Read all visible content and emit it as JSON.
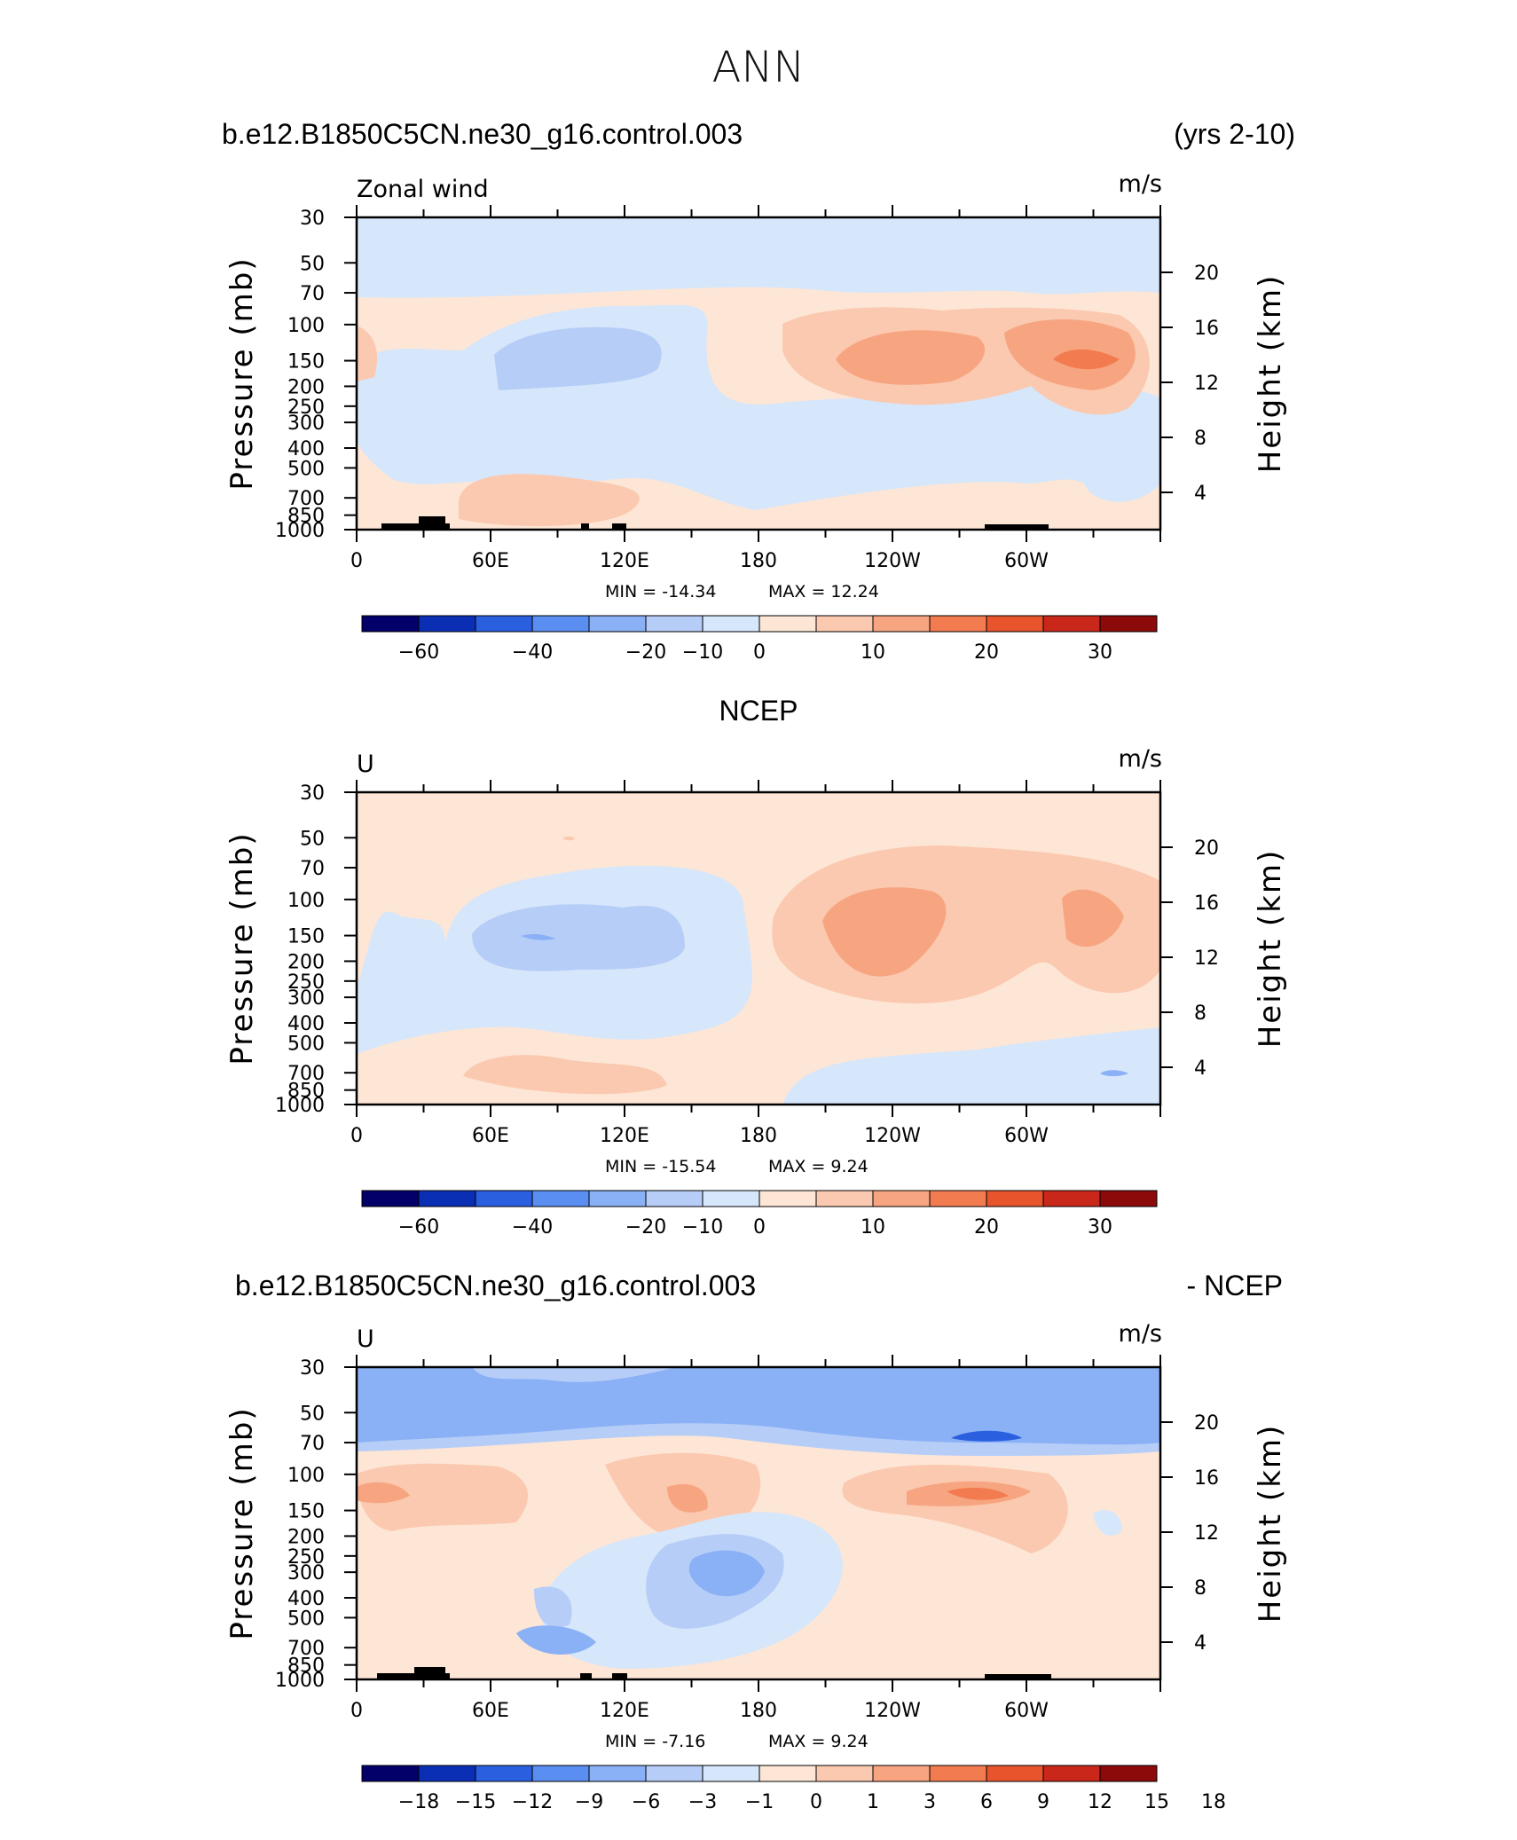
{
  "figure_title": "ANN",
  "chart_data": [
    {
      "type": "heatmap",
      "id": "model",
      "title_left": "b.e12.B1850C5CN.ne30_g16.control.003",
      "title_right": "(yrs 2-10)",
      "label_left": "Zonal wind",
      "label_right": "m/s",
      "ylabel": "Pressure (mb)",
      "ylabel_right": "Height (km)",
      "x_ticks": [
        "0",
        "60E",
        "120E",
        "180",
        "120W",
        "60W"
      ],
      "y_ticks": [
        "30",
        "50",
        "70",
        "100",
        "150",
        "200",
        "250",
        "300",
        "400",
        "500",
        "700",
        "850",
        "1000"
      ],
      "height_ticks": [
        "20",
        "16",
        "12",
        "8",
        "4"
      ],
      "ylim": [
        1000,
        30
      ],
      "xlim": [
        0,
        360
      ],
      "min_label": "MIN =  -14.34",
      "max_label": "MAX =   12.24",
      "colorbar_labels": [
        "-60",
        "-40",
        "-20",
        "-10",
        "0",
        "10",
        "20",
        "30"
      ],
      "colors": [
        "#03006a",
        "#0a2fb4",
        "#2a5fe0",
        "#5a8ef0",
        "#8ab0f5",
        "#b6cdf8",
        "#d6e6fb",
        "#fde6d6",
        "#fbc9b0",
        "#f7a581",
        "#f27c50",
        "#e8542c",
        "#c9271a",
        "#8c0a0a"
      ]
    },
    {
      "type": "heatmap",
      "id": "ncep",
      "title_center": "NCEP",
      "label_left": "U",
      "label_right": "m/s",
      "ylabel": "Pressure (mb)",
      "ylabel_right": "Height (km)",
      "x_ticks": [
        "0",
        "60E",
        "120E",
        "180",
        "120W",
        "60W"
      ],
      "y_ticks": [
        "30",
        "50",
        "70",
        "100",
        "150",
        "200",
        "250",
        "300",
        "400",
        "500",
        "700",
        "850",
        "1000"
      ],
      "height_ticks": [
        "20",
        "16",
        "12",
        "8",
        "4"
      ],
      "ylim": [
        1000,
        30
      ],
      "xlim": [
        0,
        360
      ],
      "min_label": "MIN =  -15.54",
      "max_label": "MAX =    9.24",
      "colorbar_labels": [
        "-60",
        "-40",
        "-20",
        "-10",
        "0",
        "10",
        "20",
        "30"
      ]
    },
    {
      "type": "heatmap",
      "id": "diff",
      "title_left": "b.e12.B1850C5CN.ne30_g16.control.003",
      "title_right": "- NCEP",
      "label_left": "U",
      "label_right": "m/s",
      "ylabel": "Pressure (mb)",
      "ylabel_right": "Height (km)",
      "x_ticks": [
        "0",
        "60E",
        "120E",
        "180",
        "120W",
        "60W"
      ],
      "y_ticks": [
        "30",
        "50",
        "70",
        "100",
        "150",
        "200",
        "250",
        "300",
        "400",
        "500",
        "700",
        "850",
        "1000"
      ],
      "height_ticks": [
        "20",
        "16",
        "12",
        "8",
        "4"
      ],
      "ylim": [
        1000,
        30
      ],
      "xlim": [
        0,
        360
      ],
      "min_label": "MIN =   -7.16",
      "max_label": "MAX =    9.24",
      "colorbar_labels": [
        "-18",
        "-15",
        "-12",
        "-9",
        "-6",
        "-3",
        "-1",
        "0",
        "1",
        "3",
        "6",
        "9",
        "12",
        "15",
        "18"
      ]
    }
  ]
}
